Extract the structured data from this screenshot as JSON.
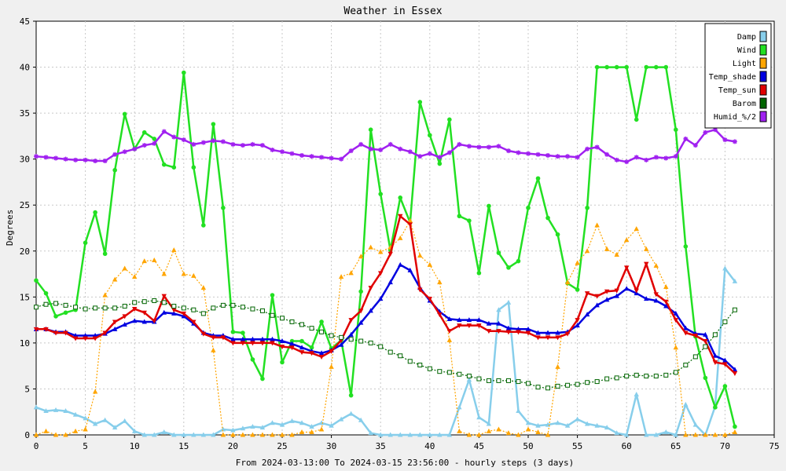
{
  "chart_data": {
    "type": "line",
    "title": "Weather in Essex",
    "xlabel": "From 2024-03-13:00 To 2024-03-15 23:56:00 - hourly steps (3 days)",
    "ylabel": "Degrees",
    "xlim": [
      0,
      75
    ],
    "ylim": [
      0,
      45
    ],
    "xticks": [
      0,
      5,
      10,
      15,
      20,
      25,
      30,
      35,
      40,
      45,
      50,
      55,
      60,
      65,
      70,
      75
    ],
    "yticks": [
      0,
      5,
      10,
      15,
      20,
      25,
      30,
      35,
      40,
      45
    ],
    "grid": true,
    "legend_position": "top-right",
    "series": [
      {
        "name": "Damp",
        "color": "#87ceeb",
        "values": [
          3,
          2.6,
          2.7,
          2.6,
          2.2,
          1.8,
          1.2,
          1.6,
          0.8,
          1.5,
          0.4,
          0,
          0,
          0.3,
          0,
          0,
          0,
          0,
          0,
          0.6,
          0.5,
          0.7,
          0.9,
          0.8,
          1.3,
          1.1,
          1.5,
          1.3,
          0.9,
          1.3,
          1,
          1.7,
          2.3,
          1.6,
          0.2,
          0,
          0,
          0,
          0,
          0,
          0,
          0,
          0,
          3,
          6,
          1.9,
          1.2,
          13.6,
          14.4,
          2.6,
          1.3,
          1,
          1.1,
          1.3,
          1,
          1.7,
          1.2,
          1,
          0.8,
          0.2,
          0,
          4.4,
          0,
          0,
          0.3,
          0,
          3.3,
          1.1,
          0,
          3.1,
          18.1,
          16.7
        ]
      },
      {
        "name": "Wind",
        "color": "#22e022",
        "values": [
          16.8,
          15.4,
          12.9,
          13.3,
          13.6,
          20.9,
          24.2,
          19.7,
          28.8,
          34.9,
          31.1,
          32.9,
          32.2,
          29.4,
          29.1,
          39.4,
          29.1,
          22.8,
          33.8,
          24.7,
          11.2,
          11.1,
          8.2,
          6.1,
          15.2,
          7.9,
          10.2,
          10.2,
          9.5,
          12.3,
          9.4,
          10.3,
          4.3,
          15.6,
          33.2,
          26.2,
          20.1,
          25.8,
          23.1,
          36.2,
          32.6,
          29.5,
          34.3,
          23.8,
          23.3,
          17.6,
          24.9,
          19.8,
          18.2,
          18.9,
          24.7,
          27.9,
          23.6,
          21.8,
          16.5,
          15.8,
          24.7,
          40,
          40,
          40,
          40,
          34.3,
          40,
          40,
          40,
          33.2,
          20.5,
          10.7,
          6.2,
          3,
          5.3,
          0.9
        ]
      },
      {
        "name": "Light",
        "color": "#ffa500",
        "values": [
          0,
          0.4,
          0,
          0,
          0.4,
          0.6,
          4.7,
          15.2,
          16.9,
          18.1,
          17.2,
          18.9,
          19,
          17.5,
          20.1,
          17.5,
          17.3,
          16,
          9.2,
          0,
          0,
          0,
          0,
          0,
          0,
          0,
          0,
          0.3,
          0.3,
          0.6,
          7.4,
          17.2,
          17.6,
          19.4,
          20.4,
          19.9,
          20.4,
          21.4,
          23.3,
          19.5,
          18.5,
          16.6,
          10.3,
          0.4,
          0,
          0,
          0.4,
          0.6,
          0.2,
          0,
          0.6,
          0.3,
          0,
          7.4,
          16.6,
          18.7,
          20,
          22.8,
          20.2,
          19.6,
          21.2,
          22.4,
          20.2,
          18.4,
          16.1,
          9.5,
          0,
          0,
          0,
          0,
          0,
          0.3
        ]
      },
      {
        "name": "Temp_shade",
        "color": "#0000e0",
        "values": [
          11.5,
          11.5,
          11.2,
          11.2,
          10.8,
          10.8,
          10.8,
          11,
          11.5,
          12,
          12.4,
          12.3,
          12.3,
          13.3,
          13.2,
          12.9,
          12.1,
          11.1,
          10.8,
          10.8,
          10.4,
          10.4,
          10.4,
          10.4,
          10.4,
          10.2,
          9.9,
          9.5,
          9.1,
          8.9,
          9.2,
          9.8,
          10.9,
          12.2,
          13.5,
          14.8,
          16.6,
          18.5,
          17.9,
          16,
          14.6,
          13.4,
          12.6,
          12.5,
          12.5,
          12.5,
          12.1,
          12.1,
          11.6,
          11.5,
          11.5,
          11.1,
          11.1,
          11.1,
          11.2,
          11.9,
          13.1,
          14.1,
          14.7,
          15.1,
          15.9,
          15.4,
          14.8,
          14.6,
          14,
          13.2,
          11.6,
          11,
          10.9,
          8.6,
          8.1,
          7.1
        ]
      },
      {
        "name": "Temp_sun",
        "color": "#e00000",
        "values": [
          11.5,
          11.5,
          11.1,
          11.1,
          10.5,
          10.5,
          10.5,
          11.1,
          12.3,
          12.9,
          13.7,
          13.3,
          12.4,
          15.1,
          13.6,
          13.2,
          12.3,
          11,
          10.6,
          10.6,
          10,
          10,
          10,
          10,
          10,
          9.6,
          9.5,
          9,
          8.9,
          8.5,
          9.1,
          10.3,
          12.5,
          13.5,
          16,
          17.6,
          19.7,
          23.8,
          22.9,
          15.8,
          14.8,
          13.1,
          11.3,
          11.9,
          11.9,
          11.9,
          11.3,
          11.3,
          11.2,
          11.2,
          11.1,
          10.6,
          10.6,
          10.6,
          11,
          12.5,
          15.4,
          15.1,
          15.6,
          15.7,
          18.2,
          15.7,
          18.6,
          15.3,
          14.5,
          12.5,
          11.1,
          10.8,
          10.2,
          7.9,
          7.7,
          6.7
        ]
      },
      {
        "name": "Barom",
        "color": "#006400",
        "values": [
          13.9,
          14.2,
          14.3,
          14.1,
          13.9,
          13.7,
          13.8,
          13.8,
          13.8,
          14,
          14.4,
          14.5,
          14.6,
          14.4,
          14,
          13.8,
          13.6,
          13.2,
          13.8,
          14.1,
          14.1,
          13.9,
          13.7,
          13.5,
          13,
          12.7,
          12.3,
          12,
          11.6,
          11.2,
          10.8,
          10.6,
          10.4,
          10.2,
          10,
          9.6,
          9,
          8.6,
          8,
          7.6,
          7.2,
          6.9,
          6.8,
          6.6,
          6.4,
          6.1,
          5.9,
          5.9,
          5.9,
          5.8,
          5.6,
          5.2,
          5.1,
          5.3,
          5.4,
          5.5,
          5.7,
          5.8,
          6.1,
          6.2,
          6.4,
          6.5,
          6.4,
          6.4,
          6.5,
          6.8,
          7.6,
          8.5,
          9.6,
          10.9,
          12.3,
          13.6
        ]
      },
      {
        "name": "Humid_%/2",
        "color": "#a020f0",
        "values": [
          30.3,
          30.2,
          30.1,
          30,
          29.9,
          29.9,
          29.8,
          29.8,
          30.5,
          30.8,
          31.1,
          31.5,
          31.7,
          33,
          32.4,
          32.1,
          31.6,
          31.8,
          32,
          31.9,
          31.6,
          31.5,
          31.6,
          31.5,
          31,
          30.8,
          30.6,
          30.4,
          30.3,
          30.2,
          30.1,
          30,
          30.9,
          31.6,
          31.1,
          31,
          31.6,
          31.1,
          30.8,
          30.3,
          30.6,
          30.2,
          30.7,
          31.6,
          31.4,
          31.3,
          31.3,
          31.4,
          30.9,
          30.7,
          30.6,
          30.5,
          30.4,
          30.3,
          30.3,
          30.2,
          31.1,
          31.3,
          30.5,
          29.9,
          29.7,
          30.2,
          29.9,
          30.2,
          30.1,
          30.3,
          32.2,
          31.5,
          32.9,
          33.2,
          32.1,
          31.9
        ]
      }
    ]
  }
}
